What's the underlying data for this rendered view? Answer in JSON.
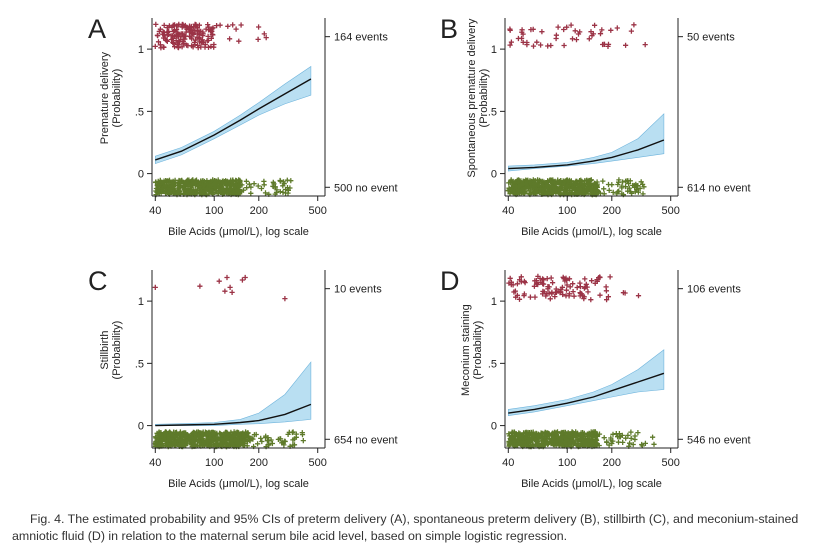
{
  "caption": {
    "line1": "Fig. 4. The estimated probability and 95% CIs of preterm delivery (A), spontaneous preterm delivery (B), stillbirth (C), and meconium-stained",
    "line2": "amniotic fluid (D) in relation to the maternal serum bile acid level, based on simple logistic regression."
  },
  "colors": {
    "event": "#9b3346",
    "no_event": "#5e7a2a",
    "ci_fill": "#b9dff2",
    "ci_stroke": "#6fb4dc",
    "curve": "#111111",
    "axis": "#222222"
  },
  "chart_data": [
    {
      "type": "line",
      "panel": "A",
      "ylabel": [
        "Premature delivery",
        "(Probability)"
      ],
      "xlabel": "Bile Acids (μmol/L), log scale",
      "x_scale": "log",
      "xlim": [
        38,
        560
      ],
      "ylim": [
        -0.18,
        1.25
      ],
      "xticks": [
        40,
        100,
        200,
        500
      ],
      "yticks": [
        {
          "v": 0,
          "label": "0"
        },
        {
          "v": 0.5,
          "label": ".5"
        },
        {
          "v": 1,
          "label": "1"
        }
      ],
      "right_labels": [
        {
          "y": 1.1,
          "label": "164 events"
        },
        {
          "y": -0.11,
          "label": "500 no event"
        }
      ],
      "events_n": 164,
      "events_x": [
        40,
        250
      ],
      "events_dense": [
        40,
        100
      ],
      "noevents_n": 500,
      "noevents_x": [
        40,
        330
      ],
      "noevents_dense": [
        40,
        150
      ],
      "curve": {
        "x": [
          40,
          60,
          100,
          150,
          200,
          300,
          450
        ],
        "y": [
          0.11,
          0.18,
          0.31,
          0.43,
          0.52,
          0.64,
          0.76
        ]
      },
      "ci_lower": [
        0.08,
        0.15,
        0.28,
        0.39,
        0.47,
        0.56,
        0.63
      ],
      "ci_upper": [
        0.14,
        0.21,
        0.34,
        0.47,
        0.57,
        0.72,
        0.86
      ]
    },
    {
      "type": "line",
      "panel": "B",
      "ylabel": [
        "Spontaneous premature delivery",
        "(Probability)"
      ],
      "xlabel": "Bile Acids (μmol/L), log scale",
      "x_scale": "log",
      "xlim": [
        38,
        560
      ],
      "ylim": [
        -0.18,
        1.25
      ],
      "xticks": [
        40,
        100,
        200,
        500
      ],
      "yticks": [
        {
          "v": 0,
          "label": "0"
        },
        {
          "v": 0.5,
          "label": ".5"
        },
        {
          "v": 1,
          "label": "1"
        }
      ],
      "right_labels": [
        {
          "y": 1.1,
          "label": "50 events"
        },
        {
          "y": -0.11,
          "label": "614 no event"
        }
      ],
      "events_n": 50,
      "events_x": [
        40,
        420
      ],
      "events_dense": [
        40,
        200
      ],
      "noevents_n": 614,
      "noevents_x": [
        40,
        330
      ],
      "noevents_dense": [
        40,
        160
      ],
      "curve": {
        "x": [
          40,
          60,
          100,
          150,
          200,
          300,
          450
        ],
        "y": [
          0.04,
          0.05,
          0.07,
          0.1,
          0.13,
          0.19,
          0.27
        ]
      },
      "ci_lower": [
        0.02,
        0.04,
        0.06,
        0.08,
        0.1,
        0.13,
        0.16
      ],
      "ci_upper": [
        0.06,
        0.07,
        0.09,
        0.13,
        0.17,
        0.28,
        0.48
      ]
    },
    {
      "type": "line",
      "panel": "C",
      "ylabel": [
        "Stillbirth",
        "(Probability)"
      ],
      "xlabel": "Bile Acids (μmol/L), log scale",
      "x_scale": "log",
      "xlim": [
        38,
        560
      ],
      "ylim": [
        -0.18,
        1.25
      ],
      "xticks": [
        40,
        100,
        200,
        500
      ],
      "yticks": [
        {
          "v": 0,
          "label": "0"
        },
        {
          "v": 0.5,
          "label": ".5"
        },
        {
          "v": 1,
          "label": "1"
        }
      ],
      "right_labels": [
        {
          "y": 1.1,
          "label": "10 events"
        },
        {
          "y": -0.11,
          "label": "654 no event"
        }
      ],
      "events": [
        {
          "x": 40,
          "y": 1.11
        },
        {
          "x": 80,
          "y": 1.12
        },
        {
          "x": 108,
          "y": 1.16
        },
        {
          "x": 118,
          "y": 1.08
        },
        {
          "x": 122,
          "y": 1.19
        },
        {
          "x": 128,
          "y": 1.11
        },
        {
          "x": 132,
          "y": 1.07
        },
        {
          "x": 155,
          "y": 1.17
        },
        {
          "x": 162,
          "y": 1.19
        },
        {
          "x": 300,
          "y": 1.02
        }
      ],
      "noevents_n": 654,
      "noevents_x": [
        40,
        400
      ],
      "noevents_dense": [
        40,
        170
      ],
      "curve": {
        "x": [
          40,
          60,
          100,
          150,
          200,
          300,
          450
        ],
        "y": [
          0.0,
          0.005,
          0.01,
          0.025,
          0.04,
          0.09,
          0.17
        ]
      },
      "ci_lower": [
        0.0,
        0.0,
        0.0,
        0.01,
        0.015,
        0.03,
        0.05
      ],
      "ci_upper": [
        0.01,
        0.015,
        0.025,
        0.05,
        0.1,
        0.25,
        0.51
      ]
    },
    {
      "type": "line",
      "panel": "D",
      "ylabel": [
        "Meconium staining",
        "(Probability)"
      ],
      "xlabel": "Bile Acids (μmol/L), log scale",
      "x_scale": "log",
      "xlim": [
        38,
        560
      ],
      "ylim": [
        -0.18,
        1.25
      ],
      "xticks": [
        40,
        100,
        200,
        500
      ],
      "yticks": [
        {
          "v": 0,
          "label": "0"
        },
        {
          "v": 0.5,
          "label": ".5"
        },
        {
          "v": 1,
          "label": "1"
        }
      ],
      "right_labels": [
        {
          "y": 1.1,
          "label": "106 events"
        },
        {
          "y": -0.11,
          "label": "546 no event"
        }
      ],
      "events_n": 106,
      "events_x": [
        40,
        340
      ],
      "events_dense": [
        40,
        170
      ],
      "noevents_n": 546,
      "noevents_x": [
        40,
        390
      ],
      "noevents_dense": [
        40,
        160
      ],
      "curve": {
        "x": [
          40,
          60,
          100,
          150,
          200,
          300,
          450
        ],
        "y": [
          0.1,
          0.13,
          0.18,
          0.23,
          0.28,
          0.35,
          0.42
        ]
      },
      "ci_lower": [
        0.08,
        0.11,
        0.16,
        0.2,
        0.23,
        0.27,
        0.29
      ],
      "ci_upper": [
        0.13,
        0.16,
        0.21,
        0.27,
        0.33,
        0.45,
        0.61
      ]
    }
  ]
}
